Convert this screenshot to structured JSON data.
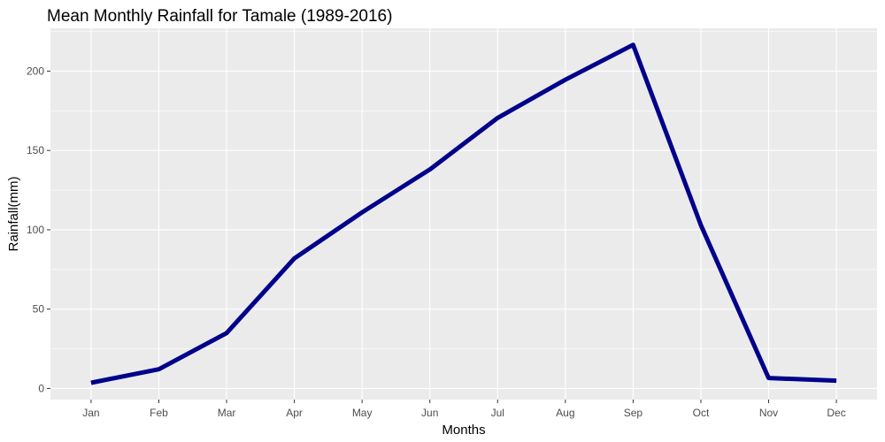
{
  "chart_data": {
    "type": "line",
    "title": "Mean Monthly Rainfall for Tamale (1989-2016)",
    "xlabel": "Months",
    "ylabel": "Rainfall(mm)",
    "categories": [
      "Jan",
      "Feb",
      "Mar",
      "Apr",
      "May",
      "Jun",
      "Jul",
      "Aug",
      "Sep",
      "Oct",
      "Nov",
      "Dec"
    ],
    "series": [
      {
        "values": [
          3.6,
          12.1,
          34.9,
          82.0,
          111.0,
          138.0,
          170.5,
          194.6,
          216.6,
          102.9,
          6.6,
          4.9
        ]
      }
    ],
    "ylim": [
      -7,
      227
    ],
    "y_ticks": [
      0,
      50,
      100,
      150,
      200
    ],
    "grid": true,
    "colors": {
      "line": "#00008b",
      "panel": "#ebebeb",
      "grid": "#ffffff",
      "tick_text": "#4d4d4d",
      "tick_mark": "#333333"
    }
  }
}
